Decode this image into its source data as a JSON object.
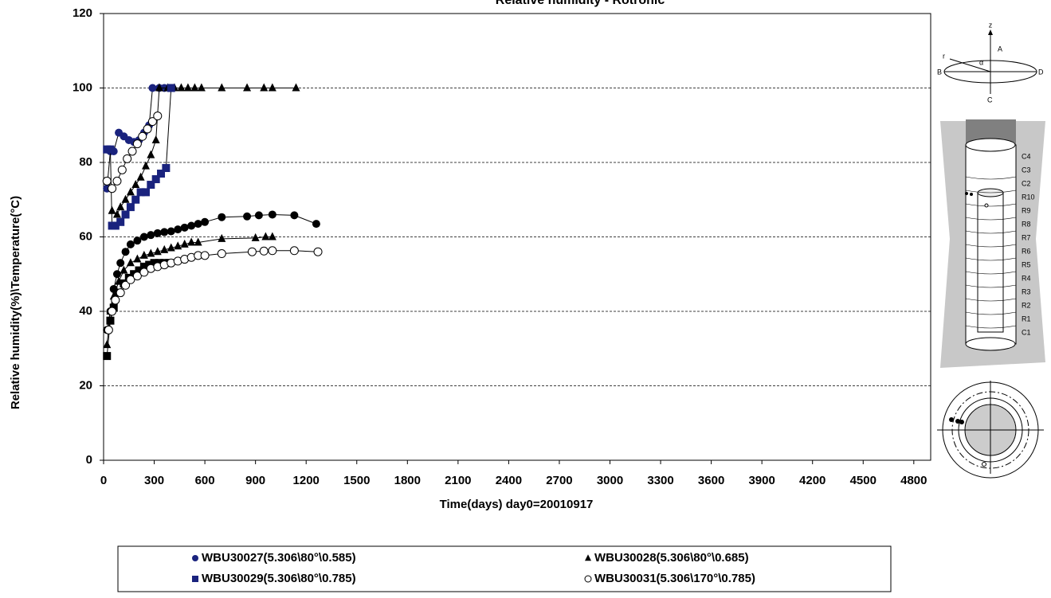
{
  "chart_data": {
    "type": "line",
    "title": "Relative humidity - Rotronic",
    "x_label": "Time(days) day0=20010917",
    "y_label": "Relative humidity(%)\\Temperature(°C)",
    "xlim": [
      0,
      4900
    ],
    "xticks": [
      0,
      300,
      600,
      900,
      1200,
      1500,
      1800,
      2100,
      2400,
      2700,
      3000,
      3300,
      3600,
      3900,
      4200,
      4500,
      4800
    ],
    "ylim": [
      0,
      120
    ],
    "yticks": [
      0,
      20,
      40,
      60,
      80,
      100,
      120
    ],
    "grid": true,
    "series": [
      {
        "name": "WBU30027(5.306\\80°\\0.585)",
        "marker": "circle",
        "color": "#1a237e",
        "temp_color": "#000000",
        "humidity": {
          "x": [
            20,
            40,
            60,
            90,
            120,
            150,
            180,
            210,
            240,
            270,
            290,
            330,
            360,
            390
          ],
          "values": [
            73,
            83,
            83,
            88,
            87,
            86,
            85.5,
            86,
            88,
            90,
            100,
            100,
            100,
            100
          ]
        },
        "temperature": {
          "x": [
            20,
            40,
            60,
            80,
            100,
            130,
            160,
            200,
            240,
            280,
            320,
            360,
            400,
            440,
            480,
            520,
            560,
            600,
            700,
            850,
            920,
            1000,
            1130,
            1260
          ],
          "values": [
            35,
            40,
            46,
            50,
            53,
            56,
            58,
            59,
            60,
            60.5,
            61,
            61.3,
            61.5,
            62,
            62.5,
            63,
            63.5,
            64,
            65.3,
            65.5,
            65.8,
            66,
            65.8,
            63.5
          ]
        }
      },
      {
        "name": "WBU30028(5.306\\80°\\0.685)",
        "marker": "triangle",
        "color": "#000000",
        "temp_color": "#000000",
        "humidity": {
          "x": [
            50,
            80,
            100,
            130,
            160,
            190,
            220,
            250,
            280,
            310,
            330,
            380,
            420,
            460,
            500,
            540,
            580,
            700,
            850,
            950,
            1000,
            1140
          ],
          "values": [
            67,
            66,
            68,
            70,
            72,
            74,
            76,
            79,
            82,
            86,
            100,
            100,
            100,
            100,
            100,
            100,
            100,
            100,
            100,
            100,
            100,
            100
          ]
        },
        "temperature": {
          "x": [
            20,
            40,
            60,
            90,
            120,
            160,
            200,
            240,
            280,
            320,
            360,
            400,
            440,
            480,
            520,
            560,
            700,
            900,
            960,
            1000
          ],
          "values": [
            31,
            40,
            44,
            48,
            51,
            53,
            54,
            55,
            55.5,
            56,
            56.5,
            57,
            57.5,
            58,
            58.5,
            58.5,
            59.5,
            59.7,
            60,
            60
          ]
        }
      },
      {
        "name": "WBU30029(5.306\\80°\\0.785)",
        "marker": "square",
        "color": "#1a237e",
        "temp_color": "#000000",
        "humidity": {
          "x": [
            20,
            40,
            50,
            70,
            100,
            130,
            160,
            190,
            220,
            250,
            280,
            310,
            340,
            370,
            400
          ],
          "values": [
            83.5,
            83.5,
            63,
            63,
            64,
            66,
            68,
            70,
            72,
            72,
            74,
            75.5,
            77,
            78.5,
            100
          ]
        },
        "temperature": {
          "x": [
            20,
            40,
            60,
            90,
            120,
            150,
            180,
            210,
            240,
            270,
            300,
            330,
            360,
            390
          ],
          "values": [
            28,
            37.5,
            41,
            45,
            47.5,
            49,
            50,
            51,
            52,
            52.5,
            53,
            53,
            53,
            53
          ]
        }
      },
      {
        "name": "WBU30031(5.306\\170°\\0.785)",
        "marker": "open-circle",
        "color": "#000000",
        "temp_color": "#000000",
        "humidity": {
          "x": [
            20,
            50,
            80,
            110,
            140,
            170,
            200,
            230,
            260,
            290,
            320
          ],
          "values": [
            75,
            73,
            75,
            78,
            81,
            83,
            85,
            87,
            89,
            91,
            92.5
          ]
        },
        "temperature": {
          "x": [
            30,
            50,
            70,
            100,
            130,
            160,
            200,
            240,
            280,
            320,
            360,
            400,
            440,
            480,
            520,
            560,
            600,
            700,
            880,
            950,
            1000,
            1130,
            1270
          ],
          "values": [
            35,
            40,
            43,
            45,
            47,
            48.5,
            49.5,
            50.5,
            51.5,
            52,
            52.5,
            53,
            53.5,
            54,
            54.5,
            55,
            55,
            55.5,
            56,
            56.2,
            56.3,
            56.3,
            56
          ]
        }
      }
    ]
  },
  "diagram": {
    "axes": {
      "z": "z",
      "a": "A",
      "b": "B",
      "c": "C",
      "d": "D",
      "r": "r",
      "alpha": "α"
    },
    "levels": [
      "C4",
      "C3",
      "C2",
      "R10",
      "R9",
      "R8",
      "R7",
      "R6",
      "R5",
      "R4",
      "R3",
      "R2",
      "R1",
      "C1"
    ]
  }
}
